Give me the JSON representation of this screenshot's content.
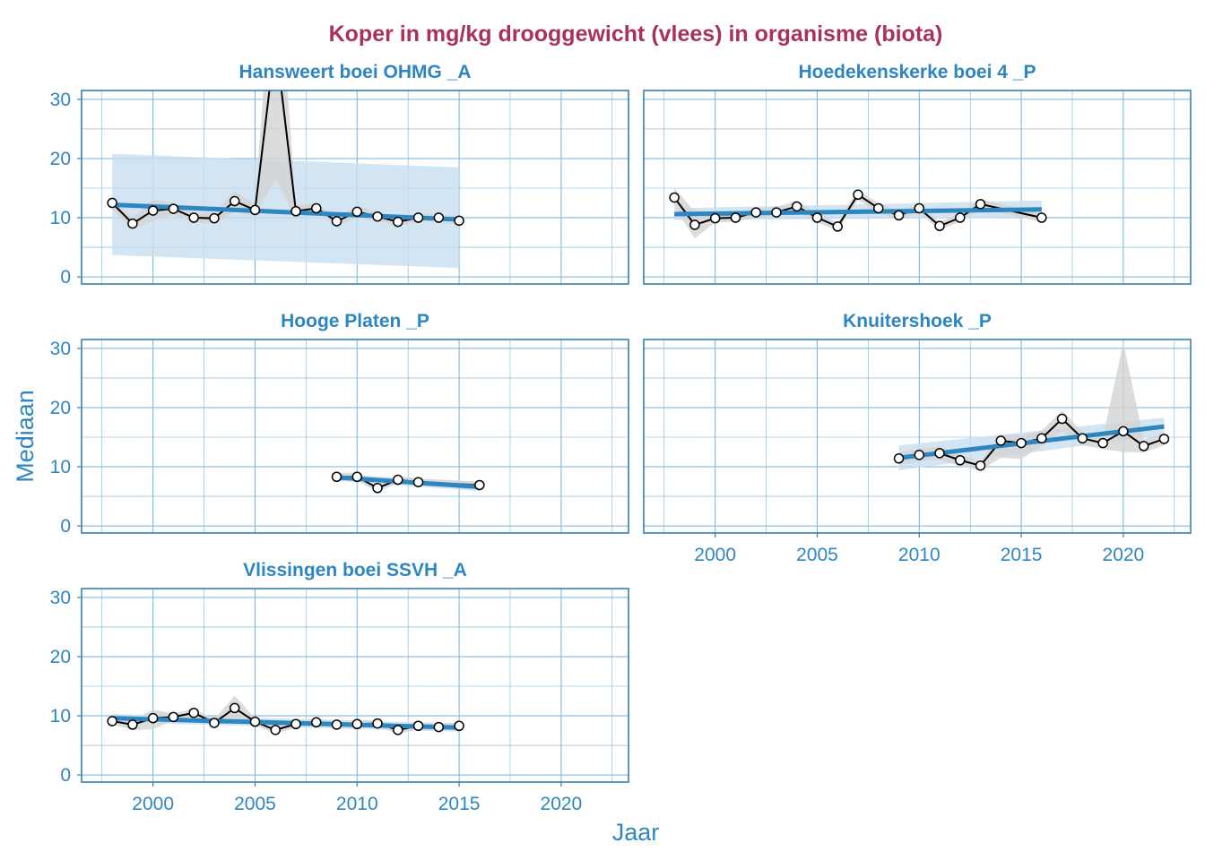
{
  "colors": {
    "title": "#A8325E",
    "accent": "#2E86C1",
    "frame": "#3A7EAD",
    "grid": "#74B3DC",
    "trend": "#2E86C1",
    "trend_band": "#C8DDF0",
    "data_band": "#D3D3D3",
    "line": "#000000",
    "point_fill": "#FFFFFF"
  },
  "chart_data": {
    "type": "line",
    "title": "Koper in mg/kg drooggewicht (vlees) in organisme (biota)",
    "xlabel": "Jaar",
    "ylabel": "Mediaan",
    "xlim": [
      1996.5,
      2023.3
    ],
    "ylim": [
      -1.2,
      31.5
    ],
    "x_ticks": [
      2000,
      2005,
      2010,
      2015,
      2020
    ],
    "y_ticks": [
      0,
      10,
      20,
      30
    ],
    "grid": true,
    "panels": [
      {
        "name": "Hansweert boei OHMG _A",
        "x": [
          1998,
          1999,
          2000,
          2001,
          2002,
          2003,
          2004,
          2005,
          2006,
          2007,
          2008,
          2009,
          2010,
          2011,
          2012,
          2013,
          2014,
          2015
        ],
        "y": [
          12.5,
          9.0,
          11.2,
          11.5,
          10.0,
          9.9,
          12.8,
          11.3,
          40.0,
          11.1,
          11.6,
          9.4,
          11.0,
          10.2,
          9.3,
          10.0,
          10.0,
          9.5
        ],
        "band_lo": [
          11.5,
          8.0,
          9.5,
          10.5,
          9.3,
          9.0,
          11.0,
          10.3,
          16.5,
          10.0,
          10.8,
          8.7,
          10.0,
          9.5,
          8.6,
          9.3,
          9.3,
          8.8
        ],
        "band_hi": [
          13.5,
          10.0,
          13.0,
          12.5,
          10.8,
          10.8,
          14.5,
          12.3,
          60.0,
          12.2,
          12.4,
          10.1,
          12.0,
          10.9,
          10.0,
          10.7,
          10.7,
          10.2
        ],
        "trend": [
          12.2,
          9.7
        ],
        "trend_lo": [
          3.7,
          1.5
        ],
        "trend_hi": [
          20.8,
          18.5
        ],
        "trend_x": [
          1998,
          2015
        ]
      },
      {
        "name": "Hoedekenskerke boei 4 _P",
        "x": [
          1998,
          1999,
          2000,
          2001,
          2002,
          2003,
          2004,
          2005,
          2006,
          2007,
          2008,
          2009,
          2010,
          2011,
          2012,
          2013,
          2016
        ],
        "y": [
          13.4,
          8.8,
          9.9,
          10.0,
          10.9,
          10.9,
          11.9,
          10.0,
          8.5,
          13.9,
          11.6,
          10.4,
          11.6,
          8.6,
          10.0,
          12.3,
          10.0
        ],
        "band_lo": [
          11.8,
          6.5,
          9.2,
          9.3,
          10.1,
          10.1,
          11.0,
          9.2,
          7.8,
          13.0,
          10.8,
          9.7,
          10.9,
          7.9,
          9.3,
          11.5,
          9.3
        ],
        "band_hi": [
          15.0,
          11.0,
          10.6,
          10.8,
          11.6,
          11.8,
          12.9,
          10.8,
          9.2,
          14.8,
          12.4,
          11.1,
          12.3,
          9.3,
          10.7,
          13.1,
          10.7
        ],
        "trend": [
          10.6,
          11.4
        ],
        "trend_lo": [
          9.6,
          10.0
        ],
        "trend_hi": [
          11.6,
          12.9
        ],
        "trend_x": [
          1998,
          2016
        ]
      },
      {
        "name": "Hooge Platen _P",
        "x": [
          2009,
          2010,
          2011,
          2012,
          2013,
          2016
        ],
        "y": [
          8.3,
          8.3,
          6.4,
          7.8,
          7.4,
          6.9
        ],
        "band_lo": [
          7.6,
          7.6,
          5.8,
          7.2,
          6.8,
          6.3
        ],
        "band_hi": [
          9.0,
          9.0,
          7.0,
          8.4,
          8.0,
          7.5
        ],
        "trend": [
          8.2,
          6.6
        ],
        "trend_lo": [
          7.6,
          5.9
        ],
        "trend_hi": [
          8.8,
          7.3
        ],
        "trend_x": [
          2009,
          2016
        ]
      },
      {
        "name": "Knuitershoek _P",
        "x": [
          2009,
          2010,
          2011,
          2012,
          2013,
          2014,
          2015,
          2016,
          2017,
          2018,
          2019,
          2020,
          2021,
          2022
        ],
        "y": [
          11.4,
          12.0,
          12.3,
          11.1,
          10.2,
          14.4,
          14.0,
          14.8,
          18.1,
          14.8,
          14.0,
          16.0,
          13.5,
          14.7
        ],
        "band_lo": [
          10.3,
          11.0,
          11.2,
          10.1,
          9.4,
          11.5,
          11.3,
          13.5,
          16.0,
          13.6,
          13.0,
          12.5,
          12.4,
          13.6
        ],
        "band_hi": [
          12.5,
          13.0,
          13.4,
          12.1,
          11.0,
          15.5,
          15.3,
          16.1,
          19.5,
          15.9,
          15.0,
          31.0,
          14.6,
          15.8
        ],
        "trend": [
          11.5,
          16.8
        ],
        "trend_lo": [
          9.4,
          15.4
        ],
        "trend_hi": [
          13.6,
          18.3
        ],
        "trend_x": [
          2009,
          2022
        ]
      },
      {
        "name": "Vlissingen boei SSVH _A",
        "x": [
          1998,
          1999,
          2000,
          2001,
          2002,
          2003,
          2004,
          2005,
          2006,
          2007,
          2008,
          2009,
          2010,
          2011,
          2012,
          2013,
          2014,
          2015
        ],
        "y": [
          9.1,
          8.5,
          9.6,
          9.8,
          10.5,
          8.8,
          11.3,
          9.0,
          7.6,
          8.6,
          8.9,
          8.5,
          8.6,
          8.7,
          7.6,
          8.3,
          8.1,
          8.3
        ],
        "band_lo": [
          8.5,
          7.6,
          7.7,
          9.2,
          9.8,
          8.2,
          9.6,
          8.4,
          7.0,
          8.0,
          8.3,
          7.9,
          8.0,
          8.1,
          7.0,
          7.7,
          7.5,
          7.7
        ],
        "band_hi": [
          9.7,
          9.4,
          11.0,
          10.4,
          11.2,
          9.4,
          13.4,
          9.6,
          8.2,
          9.2,
          9.5,
          9.1,
          9.2,
          9.3,
          8.2,
          8.9,
          8.7,
          8.9
        ],
        "trend": [
          9.6,
          8.0
        ],
        "trend_lo": [
          8.9,
          7.3
        ],
        "trend_hi": [
          10.3,
          8.7
        ],
        "trend_x": [
          1998,
          2015
        ]
      }
    ]
  }
}
